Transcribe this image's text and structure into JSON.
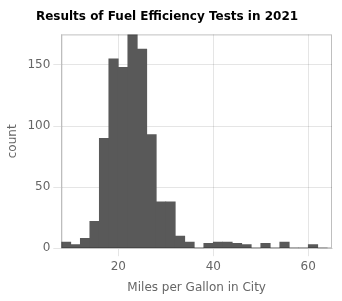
{
  "chart_data": {
    "type": "histogram",
    "title": "Results of Fuel Efficiency Tests in 2021",
    "xlabel": "Miles per Gallon in City",
    "ylabel": "count",
    "bins": [
      8,
      10,
      12,
      14,
      16,
      18,
      20,
      22,
      24,
      26,
      28,
      30,
      32,
      34,
      36,
      38,
      40,
      42,
      44,
      46,
      48,
      50,
      52,
      54,
      56,
      58,
      60,
      62,
      64
    ],
    "values": [
      5,
      3,
      8,
      22,
      90,
      155,
      148,
      175,
      163,
      93,
      38,
      38,
      10,
      5,
      0,
      4,
      5,
      5,
      4,
      3,
      0,
      4,
      0,
      5,
      0,
      0,
      3,
      0
    ],
    "color": "#595959",
    "xlim": [
      8,
      65
    ],
    "ylim": [
      0,
      175
    ],
    "xticks": [
      20,
      40,
      60
    ],
    "yticks": [
      0,
      50,
      100,
      150
    ],
    "grid": true
  }
}
